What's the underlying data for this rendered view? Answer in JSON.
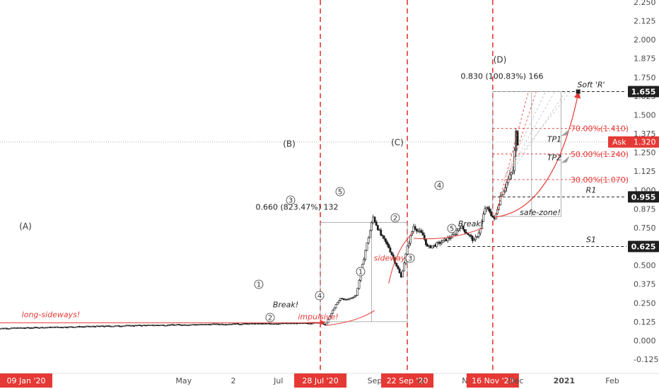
{
  "chart_data": {
    "type": "candlestick",
    "instrument_note": "",
    "y_axis": {
      "ticks": [
        "2.250",
        "2.125",
        "2.000",
        "1.875",
        "1.750",
        "1.625",
        "1.500",
        "1.375",
        "1.250",
        "1.125",
        "1.000",
        "0.875",
        "0.750",
        "0.625",
        "0.500",
        "0.375",
        "0.250",
        "0.125",
        "0.000",
        "-0.125"
      ],
      "range": [
        -0.16,
        2.27
      ],
      "price_tags": [
        {
          "label": "1.655",
          "value": 1.655,
          "style": "dark"
        },
        {
          "label": "1.320",
          "value": 1.32,
          "style": "ask",
          "prefix": "Ask"
        },
        {
          "label": "0.955",
          "value": 0.955,
          "style": "dark"
        },
        {
          "label": "0.625",
          "value": 0.625,
          "style": "dark"
        }
      ]
    },
    "x_axis": {
      "ticks": [
        {
          "label": "09 Jan '20",
          "date": "2020-01-09",
          "highlight": true
        },
        {
          "label": "May",
          "date": "2020-05-01",
          "highlight": false
        },
        {
          "label": "2",
          "date": "2020-06-02",
          "highlight": false
        },
        {
          "label": "Jul",
          "date": "2020-07-01",
          "highlight": false
        },
        {
          "label": "28 Jul '20",
          "date": "2020-07-28",
          "highlight": true
        },
        {
          "label": "Sep",
          "date": "2020-09-01",
          "highlight": false
        },
        {
          "label": "22 Sep '20",
          "date": "2020-09-22",
          "highlight": true
        },
        {
          "label": "ct",
          "date": "2020-10-01",
          "highlight": false
        },
        {
          "label": "Nov",
          "date": "2020-11-01",
          "highlight": false
        },
        {
          "label": "16 Nov '20",
          "date": "2020-11-16",
          "highlight": true
        },
        {
          "label": "Dec",
          "date": "2020-12-01",
          "highlight": false
        },
        {
          "label": "2021",
          "date": "2021-01-01",
          "highlight": false
        },
        {
          "label": "Feb",
          "date": "2021-02-01",
          "highlight": false
        }
      ]
    },
    "vertical_markers": [
      "2020-07-28",
      "2020-09-22",
      "2020-11-16"
    ],
    "horizontal_levels": [
      {
        "label": "Soft 'R'",
        "value": 1.655
      },
      {
        "label": "R1",
        "value": 0.955
      },
      {
        "label": "S1",
        "value": 0.625
      }
    ],
    "fib_levels": [
      {
        "label": "70.00%(1.410)",
        "value": 1.41
      },
      {
        "label": "50.00%(1.240)",
        "value": 1.24
      },
      {
        "label": "30.00%(1.070)",
        "value": 1.07
      }
    ],
    "wave_labels": [
      "(A)",
      "(B)",
      "(C)",
      "(D)"
    ],
    "circled_counts": [
      "1",
      "2",
      "3",
      "4",
      "5"
    ],
    "measurements": [
      {
        "text": "0.660 (823.47%) 132"
      },
      {
        "text": "0.830 (100.83%) 166"
      }
    ],
    "annotations": {
      "long_sideways": "long-sideways!",
      "break1": "Break!",
      "impulsive": "impulsive!",
      "sideways": "sideways",
      "break2": "Break!",
      "safe_zone": "safe-zone!",
      "tp1": "TP1",
      "tp2": "TP2"
    },
    "series_description": "Flat near 0.08-0.12 Jan-Jul 2020; impulsive rise to ~0.80 by late Aug; pullback to ~0.40 mid Sep; sideways 0.60-0.75 Oct-Nov; breakout to ~1.40 in late Nov; last ~1.32"
  },
  "colors": {
    "red_dashed": "#e53935",
    "dark_tag": "#1f1f1f",
    "ask_tag": "#e53935",
    "candle": "#1a1a1a"
  }
}
